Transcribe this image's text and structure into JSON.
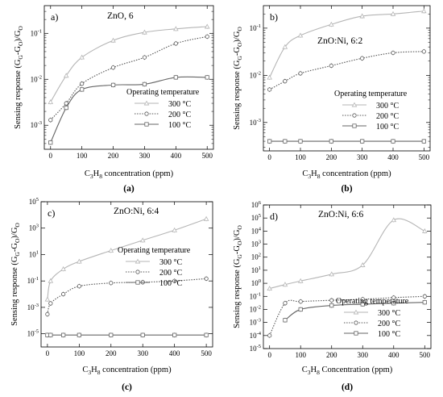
{
  "chart_data": [
    {
      "type": "line",
      "panel_label": "a)",
      "caption": "(a)",
      "sample": "ZnO, 6",
      "ylabel": "Sensing response (G_G-G_O)/G_O",
      "xlabel": "C_3H_8 concentration (ppm)",
      "yscale": "log",
      "xlim": [
        -20,
        520
      ],
      "ylim": [
        0.0003,
        0.4
      ],
      "xticks": [
        0,
        100,
        200,
        300,
        400,
        500
      ],
      "yticks": [
        0.001,
        0.01,
        0.1
      ],
      "ytick_labels": [
        "10^-3",
        "10^-2",
        "10^-1"
      ],
      "legend_title": "Operating temperature",
      "legend_position": "lower-right",
      "series": [
        {
          "name": "300 °C",
          "marker": "triangle",
          "style": "solid",
          "color": "#b5b5b5",
          "x": [
            0,
            50,
            100,
            200,
            300,
            400,
            500
          ],
          "y": [
            0.0032,
            0.012,
            0.03,
            0.07,
            0.105,
            0.125,
            0.14
          ]
        },
        {
          "name": "200 °C",
          "marker": "circle",
          "style": "dotted",
          "color": "#555555",
          "x": [
            0,
            50,
            100,
            200,
            300,
            400,
            500
          ],
          "y": [
            0.0013,
            0.003,
            0.008,
            0.018,
            0.03,
            0.06,
            0.085
          ]
        },
        {
          "name": "100 °C",
          "marker": "square",
          "style": "solid",
          "color": "#666666",
          "x": [
            0,
            50,
            100,
            200,
            300,
            400,
            500
          ],
          "y": [
            0.00042,
            0.0024,
            0.006,
            0.0075,
            0.0078,
            0.011,
            0.011
          ]
        }
      ]
    },
    {
      "type": "line",
      "panel_label": "b)",
      "caption": "(b)",
      "sample": "ZnO:Ni, 6:2",
      "ylabel": "Sensing response (G_G-G_O)/G_O",
      "xlabel": "C_3H_8 concentration (ppm)",
      "yscale": "log",
      "xlim": [
        -20,
        520
      ],
      "ylim": [
        0.00025,
        0.3
      ],
      "xticks": [
        0,
        100,
        200,
        300,
        400,
        500
      ],
      "yticks": [
        0.001,
        0.01,
        0.1
      ],
      "ytick_labels": [
        "10^-3",
        "10^-2",
        "10^-1"
      ],
      "legend_title": "Operating temperature",
      "legend_position": "lower-right",
      "series": [
        {
          "name": "300 °C",
          "marker": "triangle",
          "style": "solid",
          "color": "#b5b5b5",
          "x": [
            0,
            50,
            100,
            200,
            300,
            400,
            500
          ],
          "y": [
            0.009,
            0.04,
            0.07,
            0.12,
            0.18,
            0.2,
            0.23
          ]
        },
        {
          "name": "200 °C",
          "marker": "circle",
          "style": "dotted",
          "color": "#555555",
          "x": [
            0,
            50,
            100,
            200,
            300,
            400,
            500
          ],
          "y": [
            0.005,
            0.0075,
            0.011,
            0.016,
            0.023,
            0.03,
            0.032
          ]
        },
        {
          "name": "100 °C",
          "marker": "square",
          "style": "solid",
          "color": "#666666",
          "x": [
            0,
            50,
            100,
            200,
            300,
            400,
            500
          ],
          "y": [
            0.0004,
            0.0004,
            0.0004,
            0.0004,
            0.0004,
            0.0004,
            0.0004
          ]
        }
      ]
    },
    {
      "type": "line",
      "panel_label": "c)",
      "caption": "(c)",
      "sample": "ZnO:Ni, 6:4",
      "ylabel": "Sensing response (G_G-G_O)/G_O",
      "xlabel": "C_3H_8 concentration (ppm)",
      "yscale": "log",
      "xlim": [
        -20,
        520
      ],
      "ylim": [
        1e-06,
        100000.0
      ],
      "xticks": [
        0,
        100,
        200,
        300,
        400,
        500
      ],
      "yticks": [
        1e-05,
        0.001,
        0.1,
        10.0,
        1000.0,
        100000.0
      ],
      "ytick_labels": [
        "10^-5",
        "10^-3",
        "10^-1",
        "10^1",
        "10^3",
        "10^5"
      ],
      "legend_title": "Operating temperature",
      "legend_position": "center-right",
      "series": [
        {
          "name": "300 °C",
          "marker": "triangle",
          "style": "solid",
          "color": "#b5b5b5",
          "x": [
            0,
            10,
            50,
            100,
            200,
            300,
            400,
            500
          ],
          "y": [
            0.004,
            0.1,
            0.8,
            3,
            20,
            120,
            700,
            5000
          ]
        },
        {
          "name": "200 °C",
          "marker": "circle",
          "style": "dotted",
          "color": "#555555",
          "x": [
            0,
            10,
            50,
            100,
            200,
            300,
            400,
            500
          ],
          "y": [
            0.0003,
            0.002,
            0.01,
            0.04,
            0.07,
            0.08,
            0.1,
            0.15
          ]
        },
        {
          "name": "100 °C",
          "marker": "square",
          "style": "solid",
          "color": "#666666",
          "x": [
            0,
            10,
            50,
            100,
            200,
            300,
            400,
            500
          ],
          "y": [
            8e-06,
            8e-06,
            8e-06,
            8e-06,
            8e-06,
            8e-06,
            8e-06,
            8e-06
          ]
        }
      ]
    },
    {
      "type": "line",
      "panel_label": "d)",
      "caption": "(d)",
      "sample": "ZnO:Ni, 6:6",
      "ylabel": "Sensing response (G_G-G_O)/G_O",
      "xlabel": "C_3H_8 Concentration (ppm)",
      "yscale": "log",
      "xlim": [
        -20,
        520
      ],
      "ylim": [
        1e-05,
        1000000.0
      ],
      "xticks": [
        0,
        100,
        200,
        300,
        400,
        500
      ],
      "yticks": [
        1e-05,
        0.0001,
        0.001,
        0.01,
        0.1,
        1.0,
        10.0,
        100.0,
        1000.0,
        10000.0,
        100000.0,
        1000000.0
      ],
      "ytick_labels": [
        "10^-5",
        "10^-4",
        "10^-3",
        "10^-2",
        "10^-1",
        "10^0",
        "10^1",
        "10^2",
        "10^3",
        "10^4",
        "10^5",
        "10^6"
      ],
      "legend_title": "Operating temperature",
      "legend_position": "lower-right",
      "series": [
        {
          "name": "300 °C",
          "marker": "triangle",
          "style": "solid",
          "color": "#b5b5b5",
          "x": [
            0,
            50,
            100,
            200,
            300,
            400,
            500
          ],
          "y": [
            0.4,
            0.8,
            1.5,
            5,
            25,
            70000,
            10000
          ]
        },
        {
          "name": "200 °C",
          "marker": "circle",
          "style": "dotted",
          "color": "#555555",
          "x": [
            0,
            50,
            100,
            200,
            300,
            400,
            500
          ],
          "y": [
            0.0001,
            0.03,
            0.04,
            0.05,
            0.06,
            0.08,
            0.1
          ]
        },
        {
          "name": "100 °C",
          "marker": "square",
          "style": "solid",
          "color": "#666666",
          "x": [
            50,
            100,
            200,
            300,
            400,
            500
          ],
          "y": [
            0.0015,
            0.01,
            0.02,
            0.025,
            0.03,
            0.035
          ]
        }
      ]
    }
  ]
}
